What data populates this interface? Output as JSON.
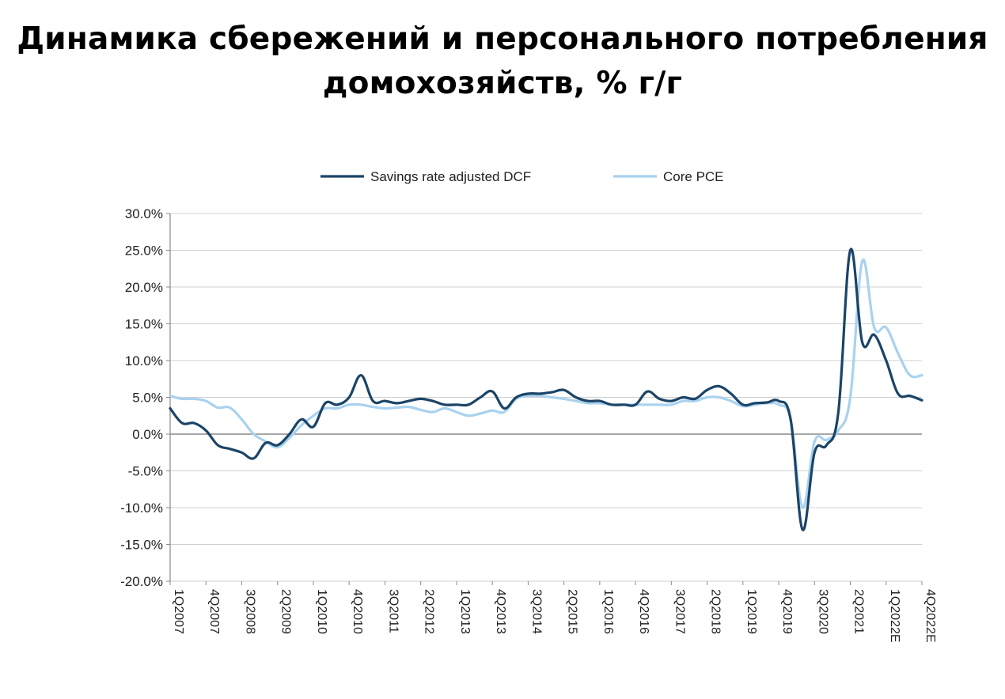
{
  "title_line1": "Динамика сбережений и персонального потребления",
  "title_line2": "домохозяйств, % г/г",
  "chart_data": {
    "type": "line",
    "title": "Динамика сбережений и персонального потребления домохозяйств, % г/г",
    "xlabel": "",
    "ylabel": "",
    "ylim": [
      -20,
      30
    ],
    "y_ticks": [
      30,
      25,
      20,
      15,
      10,
      5,
      0,
      -5,
      -10,
      -15,
      -20
    ],
    "y_tick_labels": [
      "30.0%",
      "25.0%",
      "20.0%",
      "15.0%",
      "10.0%",
      "5.0%",
      "0.0%",
      "-5.0%",
      "-10.0%",
      "-15.0%",
      "-20.0%"
    ],
    "x_tick_labels": [
      "1Q2007",
      "4Q2007",
      "3Q2008",
      "2Q2009",
      "1Q2010",
      "4Q2010",
      "3Q2011",
      "2Q2012",
      "1Q2013",
      "4Q2013",
      "3Q2014",
      "2Q2015",
      "1Q2016",
      "4Q2016",
      "3Q2017",
      "2Q2018",
      "1Q2019",
      "4Q2019",
      "3Q2020",
      "2Q2021",
      "1Q2022E",
      "4Q2022E"
    ],
    "grid": true,
    "legend_position": "top",
    "x_index_range": [
      0,
      63
    ],
    "series": [
      {
        "name": "Savings rate adjusted DCF",
        "color": "#1b4467",
        "values": [
          3.5,
          1.5,
          1.5,
          0.5,
          -1.5,
          -2.0,
          -2.5,
          -3.3,
          -1.2,
          -1.5,
          0.0,
          2.0,
          1.0,
          4.2,
          4.0,
          5.0,
          8.0,
          4.5,
          4.5,
          4.2,
          4.5,
          4.8,
          4.5,
          4.0,
          4.0,
          4.0,
          5.0,
          5.8,
          3.5,
          5.0,
          5.5,
          5.5,
          5.7,
          6.0,
          5.0,
          4.5,
          4.5,
          4.0,
          4.0,
          4.0,
          5.8,
          4.8,
          4.5,
          5.0,
          4.8,
          6.0,
          6.5,
          5.5,
          4.0,
          4.2,
          4.3,
          4.5,
          2.0,
          -13.0,
          -2.5,
          -1.5,
          3.0,
          25.0,
          12.5,
          13.5,
          10.0,
          5.5,
          5.2,
          4.6
        ]
      },
      {
        "name": "Core PCE",
        "color": "#a9d2ef",
        "values": [
          5.2,
          4.8,
          4.8,
          4.5,
          3.6,
          3.6,
          2.0,
          0.0,
          -1.0,
          -1.8,
          -0.5,
          1.2,
          2.5,
          3.5,
          3.5,
          4.0,
          4.0,
          3.7,
          3.5,
          3.6,
          3.7,
          3.3,
          3.0,
          3.5,
          3.0,
          2.5,
          2.8,
          3.2,
          3.0,
          4.8,
          5.2,
          5.2,
          5.0,
          4.8,
          4.5,
          4.2,
          4.2,
          4.0,
          4.0,
          4.0,
          4.0,
          4.0,
          4.0,
          4.5,
          4.5,
          5.0,
          5.0,
          4.5,
          3.8,
          4.0,
          4.2,
          4.0,
          2.0,
          -10.0,
          -1.0,
          -0.8,
          0.5,
          5.0,
          23.5,
          14.5,
          14.5,
          11.0,
          8.0,
          8.0
        ]
      }
    ]
  }
}
